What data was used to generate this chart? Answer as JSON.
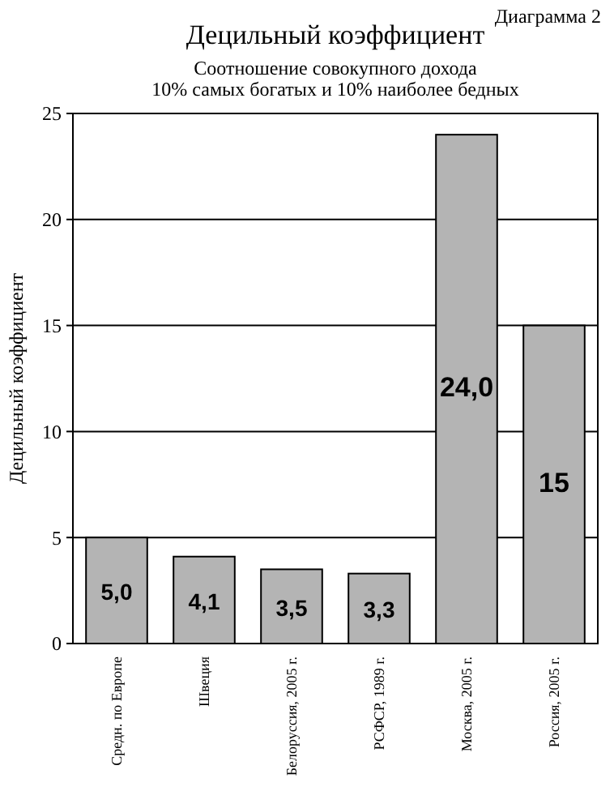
{
  "chart_data": {
    "type": "bar",
    "title": "Децильный коэффициент",
    "subtitle": "Соотношение совокупного дохода\n10% самых богатых и 10% наиболее бедных",
    "annotations": [
      "Диаграмма 2"
    ],
    "ylabel": "Децильный коэффициент",
    "categories": [
      "Средн. по Европе",
      "Швеция",
      "Белоруссия, 2005 г.",
      "РСФСР, 1989 г.",
      "Москва, 2005 г.",
      "Россия, 2005 г."
    ],
    "values": [
      5.0,
      4.1,
      3.5,
      3.3,
      24.0,
      15
    ],
    "value_labels": [
      "5,0",
      "4,1",
      "3,5",
      "3,3",
      "24,0",
      "15"
    ],
    "color": "#b4b4b4",
    "ylim": [
      0,
      25
    ],
    "yticks": [
      0,
      5,
      10,
      15,
      20,
      25
    ],
    "grid": "y"
  }
}
